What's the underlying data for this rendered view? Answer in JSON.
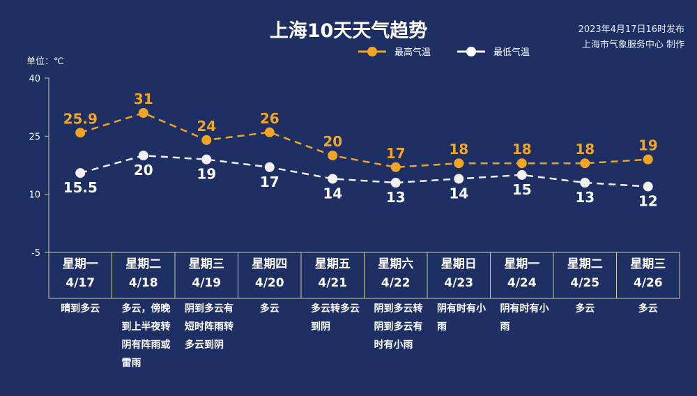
{
  "header": {
    "title": "上海10天天气趋势",
    "publish_time": "2023年4月17日16时发布",
    "producer": "上海市气象服务中心 制作"
  },
  "colors": {
    "background": "#1e2f63",
    "high": "#f0a526",
    "low": "#ffffff",
    "axis": "#c9cfa6"
  },
  "chart_data": {
    "type": "line",
    "unit_label": "单位：℃",
    "ylim": [
      -5,
      40
    ],
    "yticks": [
      40,
      25,
      10,
      -5
    ],
    "categories": [
      "4/17",
      "4/18",
      "4/19",
      "4/20",
      "4/21",
      "4/22",
      "4/23",
      "4/24",
      "4/25",
      "4/26"
    ],
    "series": [
      {
        "name": "最高气温",
        "values": [
          25.9,
          31,
          24,
          26,
          20,
          17,
          18,
          18,
          18,
          19
        ]
      },
      {
        "name": "最低气温",
        "values": [
          15.5,
          20,
          19,
          17,
          14,
          13,
          14,
          15,
          13,
          12
        ]
      }
    ],
    "legend_position": "top-center"
  },
  "days": [
    {
      "weekday": "星期一",
      "date": "4/17",
      "weather": "晴到多云"
    },
    {
      "weekday": "星期二",
      "date": "4/18",
      "weather": "多云，傍晚到上半夜转阴有阵雨或雷雨"
    },
    {
      "weekday": "星期三",
      "date": "4/19",
      "weather": "阴到多云有短时阵雨转多云到阴"
    },
    {
      "weekday": "星期四",
      "date": "4/20",
      "weather": "多云"
    },
    {
      "weekday": "星期五",
      "date": "4/21",
      "weather": "多云转多云到阴"
    },
    {
      "weekday": "星期六",
      "date": "4/22",
      "weather": "阴到多云转阴到多云有时有小雨"
    },
    {
      "weekday": "星期日",
      "date": "4/23",
      "weather": "阴有时有小雨"
    },
    {
      "weekday": "星期一",
      "date": "4/24",
      "weather": "阴有时有小雨"
    },
    {
      "weekday": "星期二",
      "date": "4/25",
      "weather": "多云"
    },
    {
      "weekday": "星期三",
      "date": "4/26",
      "weather": "多云"
    }
  ]
}
